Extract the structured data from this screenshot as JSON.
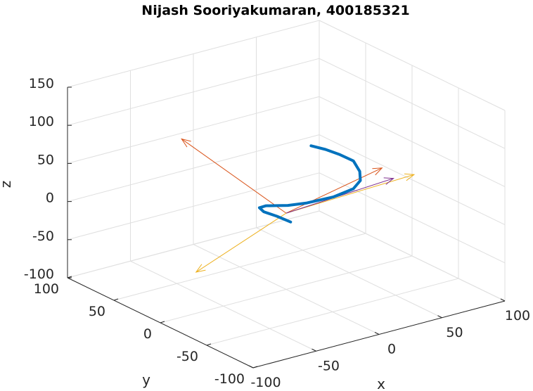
{
  "chart_data": {
    "type": "line",
    "title": "Nijash Sooriyakumaran, 400185321",
    "xlabel": "x",
    "ylabel": "y",
    "zlabel": "z",
    "xlim": [
      -100,
      100
    ],
    "ylim": [
      -100,
      100
    ],
    "zlim": [
      -100,
      150
    ],
    "xticks": [
      "-100",
      "-50",
      "0",
      "50",
      "100"
    ],
    "yticks": [
      "-100",
      "-50",
      "0",
      "50",
      "100"
    ],
    "zticks": [
      "-100",
      "-50",
      "0",
      "50",
      "100",
      "150"
    ],
    "grid": true,
    "series": [
      {
        "color": "#0072BD",
        "kind": "trajectory",
        "points": [
          [
            5,
            -20,
            98
          ],
          [
            15,
            -22,
            90
          ],
          [
            25,
            -24,
            80
          ],
          [
            35,
            -25,
            68
          ],
          [
            40,
            -25,
            52
          ],
          [
            42,
            -23,
            38
          ],
          [
            40,
            -18,
            25
          ],
          [
            30,
            -10,
            14
          ],
          [
            15,
            -2,
            8
          ],
          [
            5,
            5,
            5
          ],
          [
            0,
            10,
            4
          ],
          [
            -5,
            15,
            3
          ],
          [
            -8,
            18,
            0
          ],
          [
            -6,
            16,
            -5
          ],
          [
            0,
            10,
            -10
          ],
          [
            5,
            2,
            -15
          ]
        ]
      }
    ],
    "vectors": [
      {
        "color": "#D95319",
        "from": [
          0,
          0,
          0
        ],
        "to": [
          -30,
          72,
          68
        ]
      },
      {
        "color": "#D95319",
        "from": [
          0,
          0,
          0
        ],
        "to": [
          85,
          12,
          15
        ]
      },
      {
        "color": "#EDB120",
        "from": [
          0,
          0,
          0
        ],
        "to": [
          50,
          -70,
          70
        ]
      },
      {
        "color": "#EDB120",
        "from": [
          0,
          0,
          0
        ],
        "to": [
          -20,
          70,
          -110
        ]
      },
      {
        "color": "#7E2F8E",
        "from": [
          0,
          0,
          0
        ],
        "to": [
          100,
          20,
          -10
        ]
      }
    ]
  }
}
